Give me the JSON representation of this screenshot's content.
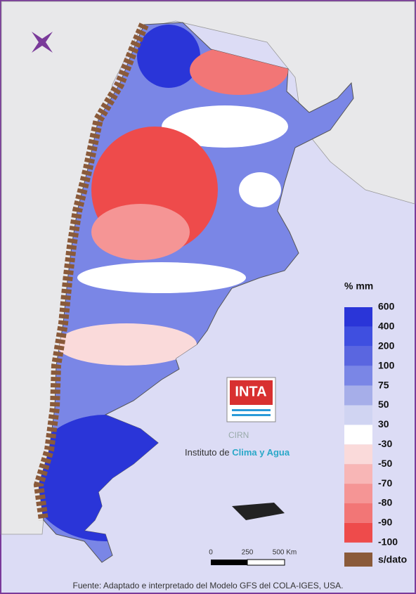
{
  "legend": {
    "title": "% mm",
    "levels": [
      600,
      400,
      200,
      100,
      75,
      50,
      30,
      -30,
      -50,
      -70,
      -80,
      -90,
      -100
    ],
    "colors": [
      "#2a35d8",
      "#3f4fe0",
      "#5a66e0",
      "#7a86e6",
      "#a6aee9",
      "#d0d4f2",
      "#ffffff",
      "#fadada",
      "#f8b6b6",
      "#f59595",
      "#f27676",
      "#ee4b4b"
    ],
    "no_data": {
      "label": "s/dato",
      "color": "#8a5a3a"
    }
  },
  "logo": {
    "name": "INTA",
    "unit": "CIRN",
    "institute_prefix": "Instituto de ",
    "institute_name": "Clima y Agua"
  },
  "scale_bar": {
    "labels": [
      "0",
      "250",
      "500 Km"
    ]
  },
  "footer": "Fuente: Adaptado e interpretado del Modelo GFS del COLA-IGES, USA."
}
